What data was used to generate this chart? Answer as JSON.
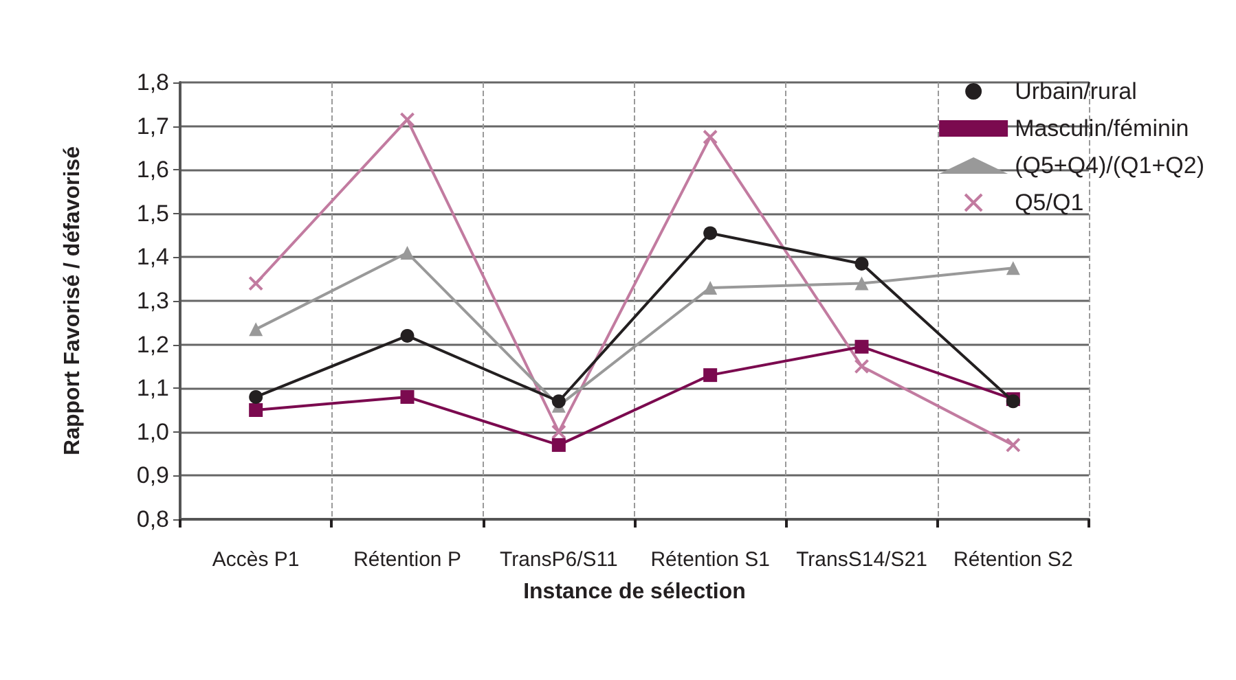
{
  "chart_data": {
    "type": "line",
    "xlabel": "Instance de sélection",
    "ylabel": "Rapport Favorisé / défavorisé",
    "categories": [
      "Accès P1",
      "Rétention P",
      "TransP6/S11",
      "Rétention S1",
      "TransS14/S21",
      "Rétention S2"
    ],
    "series": [
      {
        "name": "Urbain/rural",
        "color": "#231f20",
        "marker": "circle",
        "values": [
          1.08,
          1.22,
          1.07,
          1.455,
          1.385,
          1.07
        ]
      },
      {
        "name": "Masculin/féminin",
        "color": "#7b0a4f",
        "marker": "square",
        "values": [
          1.05,
          1.08,
          0.97,
          1.13,
          1.195,
          1.075
        ]
      },
      {
        "name": "(Q5+Q4)/(Q1+Q2)",
        "color": "#999999",
        "marker": "triangle",
        "values": [
          1.235,
          1.41,
          1.06,
          1.33,
          1.34,
          1.375
        ]
      },
      {
        "name": "Q5/Q1",
        "color": "#c27ba0",
        "marker": "cross",
        "values": [
          1.34,
          1.715,
          1.0,
          1.675,
          1.15,
          0.97
        ]
      }
    ],
    "ylim": [
      0.8,
      1.8
    ],
    "yticks": [
      {
        "value": 0.8,
        "label": "0,8"
      },
      {
        "value": 0.9,
        "label": "0,9"
      },
      {
        "value": 1.0,
        "label": "1,0"
      },
      {
        "value": 1.1,
        "label": "1,1"
      },
      {
        "value": 1.2,
        "label": "1,2"
      },
      {
        "value": 1.3,
        "label": "1,3"
      },
      {
        "value": 1.4,
        "label": "1,4"
      },
      {
        "value": 1.5,
        "label": "1,5"
      },
      {
        "value": 1.6,
        "label": "1,6"
      },
      {
        "value": 1.7,
        "label": "1,7"
      },
      {
        "value": 1.8,
        "label": "1,8"
      }
    ],
    "grid": true,
    "legend": "top right"
  }
}
